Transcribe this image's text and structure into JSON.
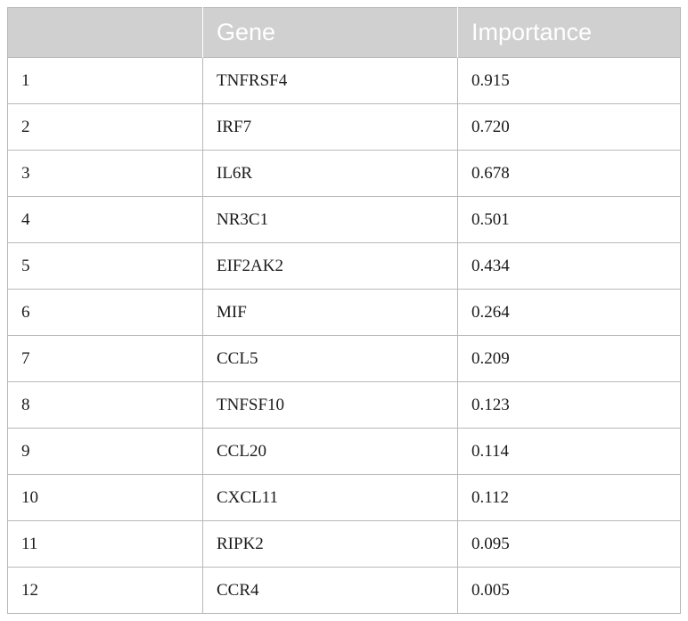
{
  "table": {
    "header": {
      "rank": "",
      "gene": "Gene",
      "importance": "Importance"
    },
    "rows": [
      {
        "rank": "1",
        "gene": "TNFRSF4",
        "importance": "0.915"
      },
      {
        "rank": "2",
        "gene": "IRF7",
        "importance": "0.720"
      },
      {
        "rank": "3",
        "gene": "IL6R",
        "importance": "0.678"
      },
      {
        "rank": "4",
        "gene": "NR3C1",
        "importance": "0.501"
      },
      {
        "rank": "5",
        "gene": "EIF2AK2",
        "importance": "0.434"
      },
      {
        "rank": "6",
        "gene": "MIF",
        "importance": "0.264"
      },
      {
        "rank": "7",
        "gene": "CCL5",
        "importance": "0.209"
      },
      {
        "rank": "8",
        "gene": "TNFSF10",
        "importance": "0.123"
      },
      {
        "rank": "9",
        "gene": "CCL20",
        "importance": "0.114"
      },
      {
        "rank": "10",
        "gene": "CXCL11",
        "importance": "0.112"
      },
      {
        "rank": "11",
        "gene": "RIPK2",
        "importance": "0.095"
      },
      {
        "rank": "12",
        "gene": "CCR4",
        "importance": "0.005"
      }
    ]
  },
  "colors": {
    "header_background": "#d0d0d0",
    "header_text": "#ffffff",
    "grid_lines": "#b8b8b8",
    "body_text": "#1a1a1a"
  }
}
